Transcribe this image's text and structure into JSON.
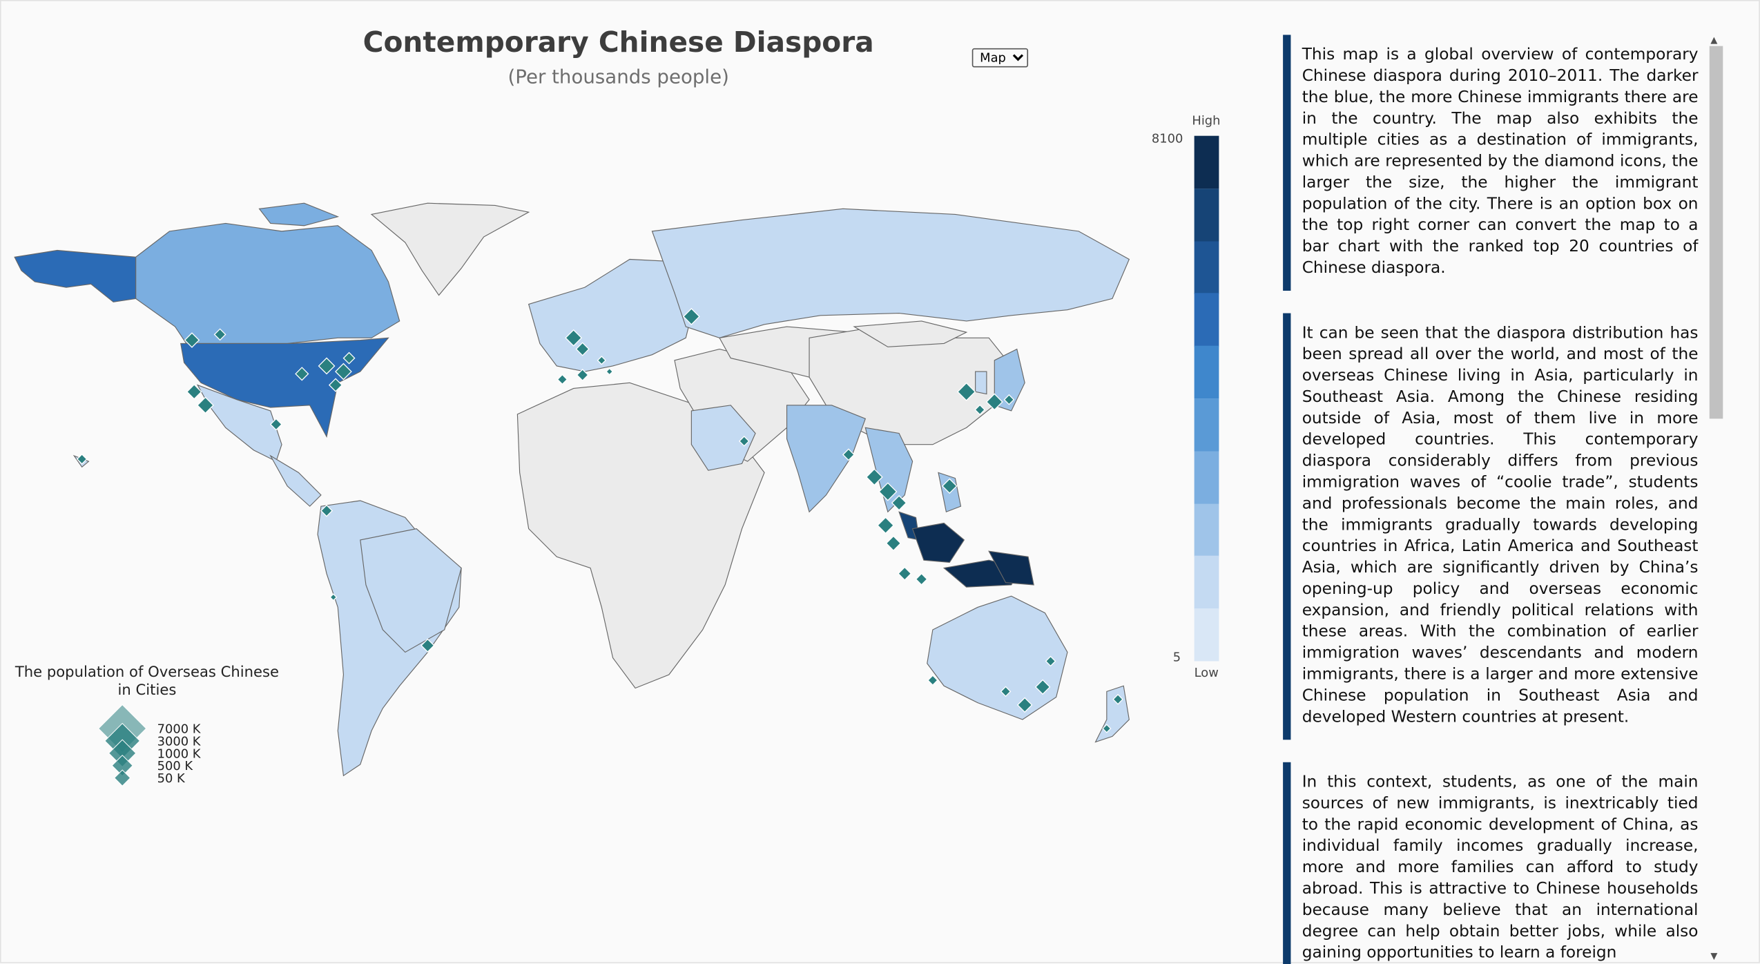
{
  "title": "Contemporary Chinese Diaspora",
  "subtitle": "(Per thousands people)",
  "view_select": {
    "selected": "Map",
    "options": [
      "Map"
    ]
  },
  "color_legend": {
    "high_label": "High",
    "low_label": "Low",
    "max_value": "8100",
    "min_value": "5",
    "colors": [
      "#0d2d52",
      "#164476",
      "#1e5594",
      "#2b6bb6",
      "#3f87cc",
      "#5a9ad6",
      "#7baee0",
      "#9fc4e9",
      "#c4daf2",
      "#d9e7f6"
    ]
  },
  "map_colors": {
    "no_data": "#ebebeb",
    "border": "#666666",
    "city_marker": "#2a8080"
  },
  "city_legend": {
    "title": "The population of Overseas Chinese in Cities",
    "levels": [
      "7000  K",
      "3000  K",
      "1000  K",
      "500   K",
      "50    K"
    ]
  },
  "paragraphs": [
    "This map is a global overview of contemporary Chinese diaspora during 2010–2011. The darker the blue, the more Chinese immigrants there are in the country. The map also exhibits the multiple cities as a destination of immigrants, which are represented by the diamond icons, the larger the size, the higher the immigrant population of the city. There is an option box on the top right corner can convert the map to a bar chart with the ranked top 20 countries of Chinese diaspora.",
    "It can be seen that the diaspora distribution has been spread all over the world, and most of the overseas Chinese living in Asia, particularly in Southeast Asia. Among the Chinese residing outside of Asia, most of them live in more developed countries. This contemporary diaspora considerably differs from previous immigration waves of “coolie trade”, students and professionals become the main roles, and the immigrants gradually towards developing countries in Africa, Latin America and Southeast Asia, which are significantly driven by China’s opening-up policy and overseas economic expansion, and friendly political relations with these areas. With the combination of earlier immigration waves’ descendants and modern immigrants, there is a larger and more extensive Chinese population in Southeast Asia and developed Western countries at present.",
    "In this context, students, as one of the main sources of new immigrants, is inextricably tied to the rapid economic development of China, as individual family incomes gradually increase, more and more families can afford to study abroad. This is attractive to Chinese households because many believe that an international degree can help obtain better jobs, while also gaining opportunities to learn a foreign"
  ]
}
